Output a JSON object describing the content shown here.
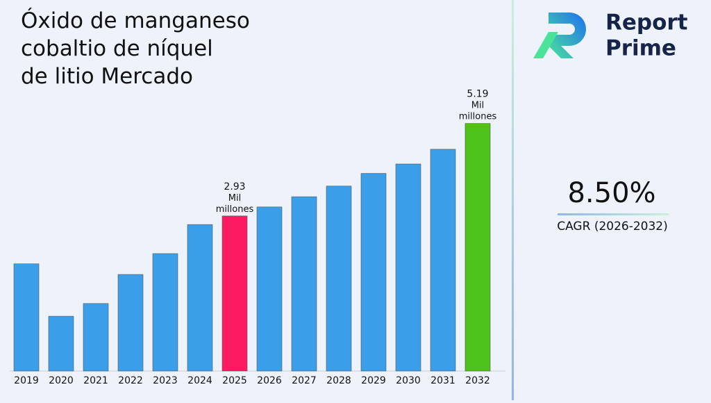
{
  "chart_data": {
    "type": "bar",
    "title": [
      "Óxido de manganeso",
      "cobaltio de níquel",
      "de litio Mercado"
    ],
    "categories": [
      "2019",
      "2020",
      "2021",
      "2022",
      "2023",
      "2024",
      "2025",
      "2026",
      "2027",
      "2028",
      "2029",
      "2030",
      "2031",
      "2032"
    ],
    "values": [
      1.76,
      0.48,
      0.79,
      1.5,
      2.01,
      2.72,
      2.93,
      3.15,
      3.4,
      3.66,
      3.97,
      4.2,
      4.56,
      5.19
    ],
    "value_labels": [
      null,
      null,
      null,
      null,
      null,
      null,
      "2.93 Mil millones",
      null,
      null,
      null,
      null,
      null,
      null,
      "5.19 Mil millones"
    ],
    "colors": [
      "#3a9fe8",
      "#3a9fe8",
      "#3a9fe8",
      "#3a9fe8",
      "#3a9fe8",
      "#3a9fe8",
      "#fc1b63",
      "#3a9fe8",
      "#3a9fe8",
      "#3a9fe8",
      "#3a9fe8",
      "#3a9fe8",
      "#3a9fe8",
      "#4cc21a"
    ],
    "ylim": [
      -0.86,
      6.0
    ]
  },
  "sidebar": {
    "brand": [
      "Report",
      "Prime"
    ],
    "cagr_value": "8.50%",
    "cagr_label": "CAGR (2026-2032)"
  }
}
